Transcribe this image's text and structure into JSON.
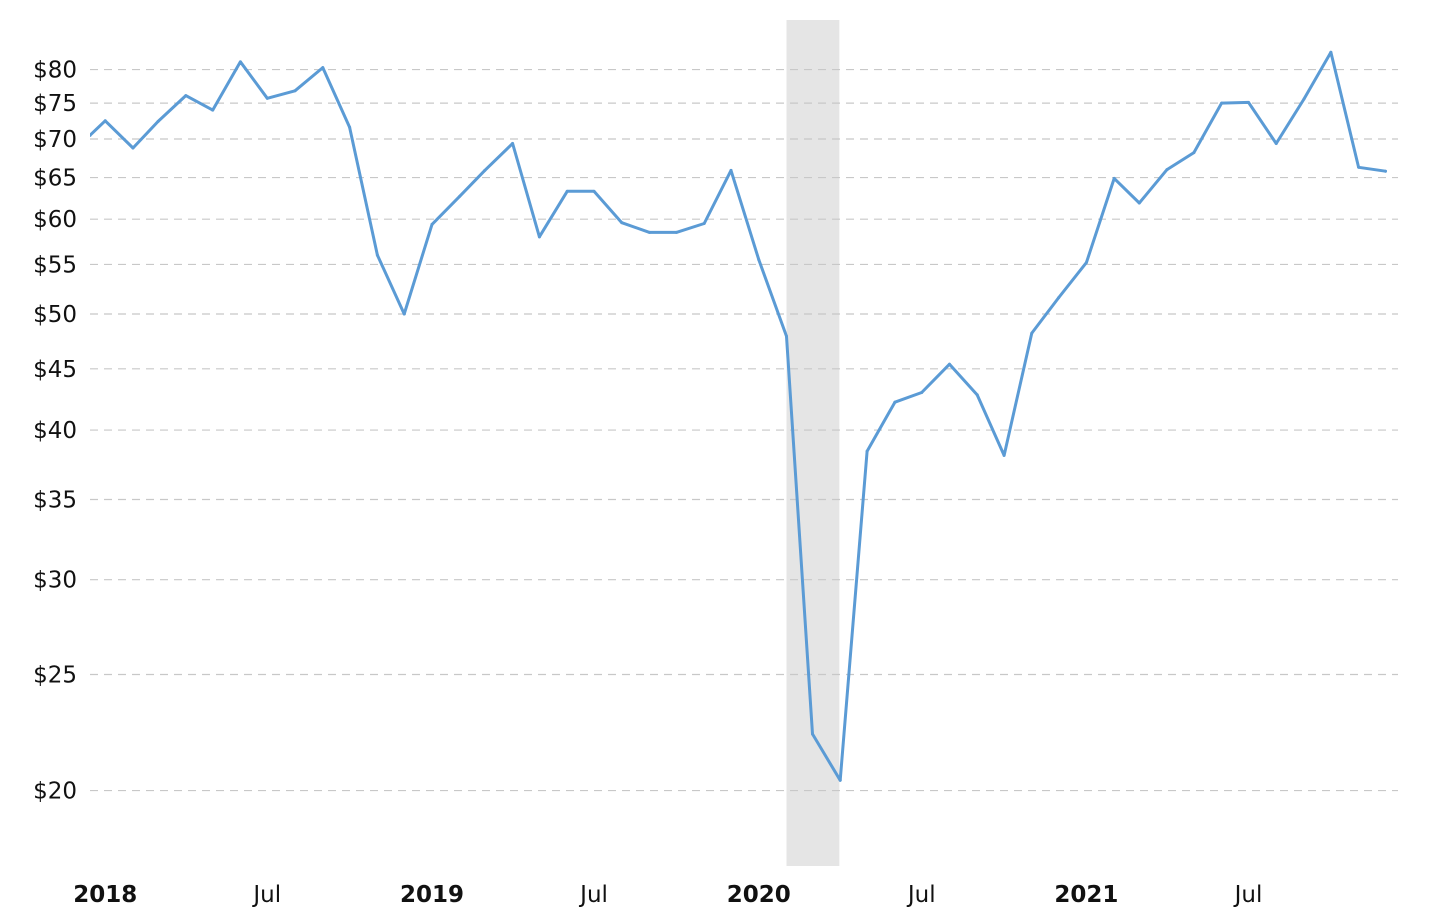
{
  "chart_data": {
    "type": "line",
    "title": "",
    "xlabel": "",
    "ylabel": "",
    "y_scale": "log",
    "ylim": [
      17.3,
      88
    ],
    "xlim": [
      "2017-12-15",
      "2021-12-15"
    ],
    "grid": true,
    "colors": {
      "line": "#5b9bd5",
      "recession_band": "#e5e5e5",
      "grid": "#c8c8c8",
      "text": "#111111"
    },
    "y_ticks": [
      {
        "value": 20,
        "label": "$20"
      },
      {
        "value": 25,
        "label": "$25"
      },
      {
        "value": 30,
        "label": "$30"
      },
      {
        "value": 35,
        "label": "$35"
      },
      {
        "value": 40,
        "label": "$40"
      },
      {
        "value": 45,
        "label": "$45"
      },
      {
        "value": 50,
        "label": "$50"
      },
      {
        "value": 55,
        "label": "$55"
      },
      {
        "value": 60,
        "label": "$60"
      },
      {
        "value": 65,
        "label": "$65"
      },
      {
        "value": 70,
        "label": "$70"
      },
      {
        "value": 75,
        "label": "$75"
      },
      {
        "value": 80,
        "label": "$80"
      }
    ],
    "x_ticks": [
      {
        "date": "2018-01-01",
        "label": "2018",
        "bold": true
      },
      {
        "date": "2018-07-01",
        "label": "Jul",
        "bold": false
      },
      {
        "date": "2019-01-01",
        "label": "2019",
        "bold": true
      },
      {
        "date": "2019-07-01",
        "label": "Jul",
        "bold": false
      },
      {
        "date": "2020-01-01",
        "label": "2020",
        "bold": true
      },
      {
        "date": "2020-07-01",
        "label": "Jul",
        "bold": false
      },
      {
        "date": "2021-01-01",
        "label": "2021",
        "bold": true
      },
      {
        "date": "2021-07-01",
        "label": "Jul",
        "bold": false
      }
    ],
    "shaded_regions": [
      {
        "start": "2020-02-01",
        "end": "2020-03-31"
      }
    ],
    "series": [
      {
        "x": [
          "2017-12-15",
          "2018-01-01",
          "2018-02-01",
          "2018-03-01",
          "2018-04-01",
          "2018-05-01",
          "2018-06-01",
          "2018-07-01",
          "2018-08-01",
          "2018-09-01",
          "2018-10-01",
          "2018-11-01",
          "2018-12-01",
          "2019-01-01",
          "2019-02-01",
          "2019-03-01",
          "2019-04-01",
          "2019-05-01",
          "2019-06-01",
          "2019-07-01",
          "2019-08-01",
          "2019-09-01",
          "2019-10-01",
          "2019-11-01",
          "2019-12-01",
          "2020-01-01",
          "2020-02-01",
          "2020-03-01",
          "2020-04-01",
          "2020-05-01",
          "2020-06-01",
          "2020-07-01",
          "2020-08-01",
          "2020-09-01",
          "2020-10-01",
          "2020-11-01",
          "2020-12-01",
          "2021-01-01",
          "2021-02-01",
          "2021-03-01",
          "2021-04-01",
          "2021-05-01",
          "2021-06-01",
          "2021-07-01",
          "2021-08-01",
          "2021-09-01",
          "2021-10-01",
          "2021-11-01",
          "2021-12-01"
        ],
        "values": [
          70.5,
          72.5,
          68.8,
          72.4,
          76.1,
          74.0,
          81.2,
          75.7,
          76.8,
          80.3,
          71.6,
          56.0,
          50.0,
          59.4,
          62.7,
          65.9,
          69.4,
          58.0,
          63.3,
          63.3,
          59.6,
          58.5,
          58.5,
          59.5,
          65.9,
          55.5,
          47.9,
          22.3,
          20.4,
          38.4,
          42.2,
          43.0,
          45.4,
          42.8,
          38.1,
          48.2,
          51.6,
          55.2,
          64.9,
          61.9,
          66.0,
          68.2,
          75.0,
          75.1,
          69.4,
          75.6,
          82.7,
          66.3,
          65.8
        ]
      }
    ]
  }
}
